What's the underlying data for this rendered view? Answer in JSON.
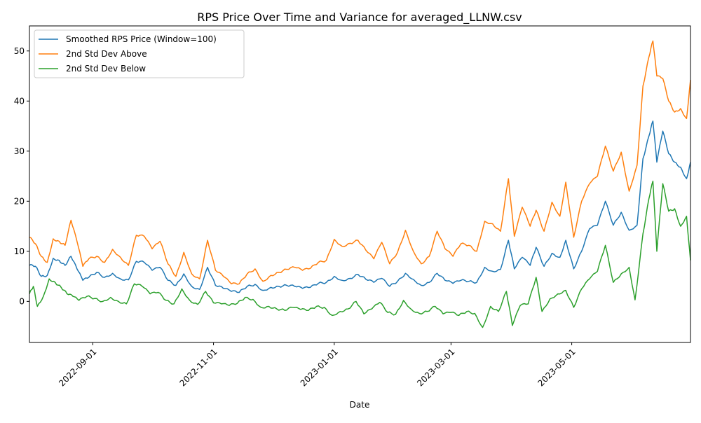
{
  "chart_data": {
    "type": "line",
    "title": "RPS Price Over Time and Variance for averaged_LLNW.csv",
    "xlabel": "Date",
    "ylabel": "",
    "x_range": [
      "2022-07-31",
      "2023-06-30"
    ],
    "ylim": [
      -8.2,
      55
    ],
    "x_ticks": [
      "2022-09-01",
      "2022-11-01",
      "2023-01-01",
      "2023-03-01",
      "2023-05-01"
    ],
    "y_ticks": [
      0,
      10,
      20,
      30,
      40,
      50
    ],
    "grid": false,
    "legend_position": "top-left",
    "series": [
      {
        "name": "Smoothed RPS Price (Window=100)",
        "color": "#1f77b4",
        "points": [
          [
            "2022-07-31",
            7.2
          ],
          [
            "2022-08-03",
            7.0
          ],
          [
            "2022-08-06",
            5.0
          ],
          [
            "2022-08-09",
            5.2
          ],
          [
            "2022-08-12",
            8.6
          ],
          [
            "2022-08-15",
            8.2
          ],
          [
            "2022-08-18",
            7.2
          ],
          [
            "2022-08-21",
            9.0
          ],
          [
            "2022-08-24",
            6.5
          ],
          [
            "2022-08-27",
            4.2
          ],
          [
            "2022-08-30",
            4.8
          ],
          [
            "2022-09-03",
            5.8
          ],
          [
            "2022-09-07",
            4.8
          ],
          [
            "2022-09-11",
            5.6
          ],
          [
            "2022-09-15",
            4.5
          ],
          [
            "2022-09-19",
            4.3
          ],
          [
            "2022-09-23",
            8.0
          ],
          [
            "2022-09-27",
            7.8
          ],
          [
            "2022-10-01",
            6.2
          ],
          [
            "2022-10-05",
            6.8
          ],
          [
            "2022-10-09",
            4.2
          ],
          [
            "2022-10-13",
            3.2
          ],
          [
            "2022-10-17",
            5.5
          ],
          [
            "2022-10-21",
            3.0
          ],
          [
            "2022-10-25",
            2.4
          ],
          [
            "2022-10-29",
            6.8
          ],
          [
            "2022-11-02",
            3.2
          ],
          [
            "2022-11-06",
            2.6
          ],
          [
            "2022-11-10",
            2.0
          ],
          [
            "2022-11-14",
            1.8
          ],
          [
            "2022-11-18",
            3.0
          ],
          [
            "2022-11-22",
            3.4
          ],
          [
            "2022-11-26",
            2.2
          ],
          [
            "2022-11-30",
            2.8
          ],
          [
            "2022-12-04",
            3.0
          ],
          [
            "2022-12-08",
            3.2
          ],
          [
            "2022-12-12",
            3.0
          ],
          [
            "2022-12-16",
            2.6
          ],
          [
            "2022-12-20",
            2.8
          ],
          [
            "2022-12-24",
            3.6
          ],
          [
            "2022-12-28",
            3.8
          ],
          [
            "2023-01-01",
            5.0
          ],
          [
            "2023-01-05",
            4.2
          ],
          [
            "2023-01-09",
            4.6
          ],
          [
            "2023-01-13",
            5.4
          ],
          [
            "2023-01-17",
            4.4
          ],
          [
            "2023-01-21",
            3.8
          ],
          [
            "2023-01-25",
            4.6
          ],
          [
            "2023-01-29",
            3.0
          ],
          [
            "2023-02-02",
            4.0
          ],
          [
            "2023-02-06",
            5.6
          ],
          [
            "2023-02-10",
            4.4
          ],
          [
            "2023-02-14",
            3.2
          ],
          [
            "2023-02-18",
            3.8
          ],
          [
            "2023-02-22",
            5.6
          ],
          [
            "2023-02-26",
            4.2
          ],
          [
            "2023-03-02",
            3.6
          ],
          [
            "2023-03-06",
            4.2
          ],
          [
            "2023-03-10",
            4.0
          ],
          [
            "2023-03-14",
            3.8
          ],
          [
            "2023-03-18",
            6.8
          ],
          [
            "2023-03-22",
            6.0
          ],
          [
            "2023-03-26",
            6.4
          ],
          [
            "2023-03-30",
            12.2
          ],
          [
            "2023-04-02",
            6.5
          ],
          [
            "2023-04-06",
            8.8
          ],
          [
            "2023-04-10",
            7.2
          ],
          [
            "2023-04-13",
            10.8
          ],
          [
            "2023-04-17",
            7.0
          ],
          [
            "2023-04-21",
            9.6
          ],
          [
            "2023-04-25",
            8.8
          ],
          [
            "2023-04-28",
            12.2
          ],
          [
            "2023-05-02",
            6.5
          ],
          [
            "2023-05-06",
            10.0
          ],
          [
            "2023-05-10",
            14.5
          ],
          [
            "2023-05-14",
            15.2
          ],
          [
            "2023-05-18",
            20.0
          ],
          [
            "2023-05-22",
            15.2
          ],
          [
            "2023-05-26",
            17.8
          ],
          [
            "2023-05-30",
            14.2
          ],
          [
            "2023-06-03",
            15.2
          ],
          [
            "2023-06-06",
            28.5
          ],
          [
            "2023-06-09",
            33.0
          ],
          [
            "2023-06-11",
            36.0
          ],
          [
            "2023-06-13",
            27.8
          ],
          [
            "2023-06-16",
            34.0
          ],
          [
            "2023-06-19",
            29.5
          ],
          [
            "2023-06-22",
            27.8
          ],
          [
            "2023-06-25",
            26.8
          ],
          [
            "2023-06-28",
            24.5
          ],
          [
            "2023-06-30",
            27.8
          ]
        ]
      },
      {
        "name": "2nd Std Dev Above",
        "color": "#ff7f0e",
        "points": [
          [
            "2022-07-31",
            12.8
          ],
          [
            "2022-08-03",
            11.5
          ],
          [
            "2022-08-06",
            9.0
          ],
          [
            "2022-08-09",
            7.8
          ],
          [
            "2022-08-12",
            12.5
          ],
          [
            "2022-08-15",
            12.0
          ],
          [
            "2022-08-18",
            11.2
          ],
          [
            "2022-08-21",
            16.2
          ],
          [
            "2022-08-24",
            12.0
          ],
          [
            "2022-08-27",
            7.0
          ],
          [
            "2022-08-30",
            8.5
          ],
          [
            "2022-09-03",
            9.0
          ],
          [
            "2022-09-07",
            7.8
          ],
          [
            "2022-09-11",
            10.4
          ],
          [
            "2022-09-15",
            8.8
          ],
          [
            "2022-09-19",
            7.2
          ],
          [
            "2022-09-23",
            13.2
          ],
          [
            "2022-09-27",
            13.0
          ],
          [
            "2022-10-01",
            10.5
          ],
          [
            "2022-10-05",
            12.0
          ],
          [
            "2022-10-09",
            7.5
          ],
          [
            "2022-10-13",
            5.0
          ],
          [
            "2022-10-17",
            9.8
          ],
          [
            "2022-10-21",
            5.5
          ],
          [
            "2022-10-25",
            4.5
          ],
          [
            "2022-10-29",
            12.2
          ],
          [
            "2022-11-02",
            6.2
          ],
          [
            "2022-11-06",
            5.0
          ],
          [
            "2022-11-10",
            3.5
          ],
          [
            "2022-11-14",
            3.5
          ],
          [
            "2022-11-18",
            5.5
          ],
          [
            "2022-11-22",
            6.5
          ],
          [
            "2022-11-26",
            4.0
          ],
          [
            "2022-11-30",
            5.2
          ],
          [
            "2022-12-04",
            5.8
          ],
          [
            "2022-12-08",
            6.4
          ],
          [
            "2022-12-12",
            6.8
          ],
          [
            "2022-12-16",
            6.2
          ],
          [
            "2022-12-20",
            6.6
          ],
          [
            "2022-12-24",
            7.8
          ],
          [
            "2022-12-28",
            8.2
          ],
          [
            "2023-01-01",
            12.4
          ],
          [
            "2023-01-05",
            11.0
          ],
          [
            "2023-01-09",
            11.6
          ],
          [
            "2023-01-13",
            12.2
          ],
          [
            "2023-01-17",
            10.2
          ],
          [
            "2023-01-21",
            8.5
          ],
          [
            "2023-01-25",
            11.8
          ],
          [
            "2023-01-29",
            7.5
          ],
          [
            "2023-02-02",
            9.8
          ],
          [
            "2023-02-06",
            14.2
          ],
          [
            "2023-02-10",
            10.0
          ],
          [
            "2023-02-14",
            7.5
          ],
          [
            "2023-02-18",
            9.0
          ],
          [
            "2023-02-22",
            14.0
          ],
          [
            "2023-02-26",
            10.5
          ],
          [
            "2023-03-02",
            9.0
          ],
          [
            "2023-03-06",
            11.5
          ],
          [
            "2023-03-10",
            11.2
          ],
          [
            "2023-03-14",
            10.0
          ],
          [
            "2023-03-18",
            16.0
          ],
          [
            "2023-03-22",
            15.5
          ],
          [
            "2023-03-26",
            14.0
          ],
          [
            "2023-03-30",
            24.5
          ],
          [
            "2023-04-02",
            13.0
          ],
          [
            "2023-04-06",
            18.8
          ],
          [
            "2023-04-10",
            15.0
          ],
          [
            "2023-04-13",
            18.2
          ],
          [
            "2023-04-17",
            14.0
          ],
          [
            "2023-04-21",
            19.8
          ],
          [
            "2023-04-25",
            17.0
          ],
          [
            "2023-04-28",
            23.8
          ],
          [
            "2023-05-02",
            12.8
          ],
          [
            "2023-05-06",
            20.0
          ],
          [
            "2023-05-10",
            23.5
          ],
          [
            "2023-05-14",
            25.0
          ],
          [
            "2023-05-18",
            31.0
          ],
          [
            "2023-05-22",
            26.0
          ],
          [
            "2023-05-26",
            29.8
          ],
          [
            "2023-05-30",
            22.0
          ],
          [
            "2023-06-03",
            27.2
          ],
          [
            "2023-06-06",
            43.0
          ],
          [
            "2023-06-09",
            48.8
          ],
          [
            "2023-06-11",
            52.0
          ],
          [
            "2023-06-13",
            45.0
          ],
          [
            "2023-06-16",
            44.5
          ],
          [
            "2023-06-19",
            40.0
          ],
          [
            "2023-06-22",
            37.8
          ],
          [
            "2023-06-25",
            38.5
          ],
          [
            "2023-06-28",
            36.5
          ],
          [
            "2023-06-30",
            44.2
          ]
        ]
      },
      {
        "name": "2nd Std Dev Below",
        "color": "#2ca02c",
        "points": [
          [
            "2022-07-31",
            1.5
          ],
          [
            "2022-08-02",
            3.0
          ],
          [
            "2022-08-04",
            -1.0
          ],
          [
            "2022-08-07",
            1.0
          ],
          [
            "2022-08-10",
            4.5
          ],
          [
            "2022-08-13",
            3.8
          ],
          [
            "2022-08-16",
            2.8
          ],
          [
            "2022-08-19",
            1.5
          ],
          [
            "2022-08-22",
            1.0
          ],
          [
            "2022-08-25",
            0.2
          ],
          [
            "2022-08-29",
            1.0
          ],
          [
            "2022-09-02",
            0.6
          ],
          [
            "2022-09-06",
            0.0
          ],
          [
            "2022-09-10",
            0.8
          ],
          [
            "2022-09-14",
            0.0
          ],
          [
            "2022-09-18",
            -0.5
          ],
          [
            "2022-09-22",
            3.5
          ],
          [
            "2022-09-26",
            3.0
          ],
          [
            "2022-09-30",
            1.5
          ],
          [
            "2022-10-04",
            1.8
          ],
          [
            "2022-10-08",
            0.2
          ],
          [
            "2022-10-12",
            -0.5
          ],
          [
            "2022-10-16",
            2.5
          ],
          [
            "2022-10-20",
            0.2
          ],
          [
            "2022-10-24",
            -0.6
          ],
          [
            "2022-10-28",
            2.0
          ],
          [
            "2022-11-01",
            -0.3
          ],
          [
            "2022-11-05",
            -0.5
          ],
          [
            "2022-11-09",
            -0.8
          ],
          [
            "2022-11-13",
            -0.4
          ],
          [
            "2022-11-17",
            0.8
          ],
          [
            "2022-11-21",
            0.4
          ],
          [
            "2022-11-25",
            -1.2
          ],
          [
            "2022-11-29",
            -1.0
          ],
          [
            "2022-12-03",
            -1.5
          ],
          [
            "2022-12-07",
            -1.8
          ],
          [
            "2022-12-11",
            -1.2
          ],
          [
            "2022-12-15",
            -1.6
          ],
          [
            "2022-12-19",
            -1.8
          ],
          [
            "2022-12-23",
            -1.0
          ],
          [
            "2022-12-27",
            -1.2
          ],
          [
            "2022-12-31",
            -2.8
          ],
          [
            "2023-01-04",
            -2.0
          ],
          [
            "2023-01-08",
            -1.5
          ],
          [
            "2023-01-12",
            0.0
          ],
          [
            "2023-01-16",
            -2.5
          ],
          [
            "2023-01-20",
            -1.5
          ],
          [
            "2023-01-24",
            -0.2
          ],
          [
            "2023-01-28",
            -2.2
          ],
          [
            "2023-02-01",
            -2.6
          ],
          [
            "2023-02-05",
            0.2
          ],
          [
            "2023-02-09",
            -1.6
          ],
          [
            "2023-02-13",
            -2.4
          ],
          [
            "2023-02-17",
            -2.0
          ],
          [
            "2023-02-21",
            -1.0
          ],
          [
            "2023-02-25",
            -2.5
          ],
          [
            "2023-03-01",
            -2.2
          ],
          [
            "2023-03-05",
            -2.8
          ],
          [
            "2023-03-09",
            -2.0
          ],
          [
            "2023-03-13",
            -2.4
          ],
          [
            "2023-03-17",
            -5.2
          ],
          [
            "2023-03-21",
            -1.0
          ],
          [
            "2023-03-25",
            -2.0
          ],
          [
            "2023-03-29",
            2.0
          ],
          [
            "2023-04-01",
            -4.8
          ],
          [
            "2023-04-05",
            -0.8
          ],
          [
            "2023-04-09",
            -0.5
          ],
          [
            "2023-04-13",
            4.8
          ],
          [
            "2023-04-16",
            -2.0
          ],
          [
            "2023-04-20",
            0.5
          ],
          [
            "2023-04-24",
            1.5
          ],
          [
            "2023-04-28",
            2.2
          ],
          [
            "2023-05-02",
            -1.2
          ],
          [
            "2023-05-06",
            2.5
          ],
          [
            "2023-05-10",
            4.5
          ],
          [
            "2023-05-14",
            6.0
          ],
          [
            "2023-05-18",
            11.2
          ],
          [
            "2023-05-22",
            3.8
          ],
          [
            "2023-05-26",
            5.5
          ],
          [
            "2023-05-30",
            6.8
          ],
          [
            "2023-06-02",
            0.3
          ],
          [
            "2023-06-06",
            13.5
          ],
          [
            "2023-06-09",
            20.5
          ],
          [
            "2023-06-11",
            24.0
          ],
          [
            "2023-06-13",
            10.0
          ],
          [
            "2023-06-16",
            23.5
          ],
          [
            "2023-06-19",
            18.0
          ],
          [
            "2023-06-22",
            18.5
          ],
          [
            "2023-06-25",
            15.0
          ],
          [
            "2023-06-28",
            17.0
          ],
          [
            "2023-06-30",
            8.2
          ]
        ]
      }
    ]
  }
}
